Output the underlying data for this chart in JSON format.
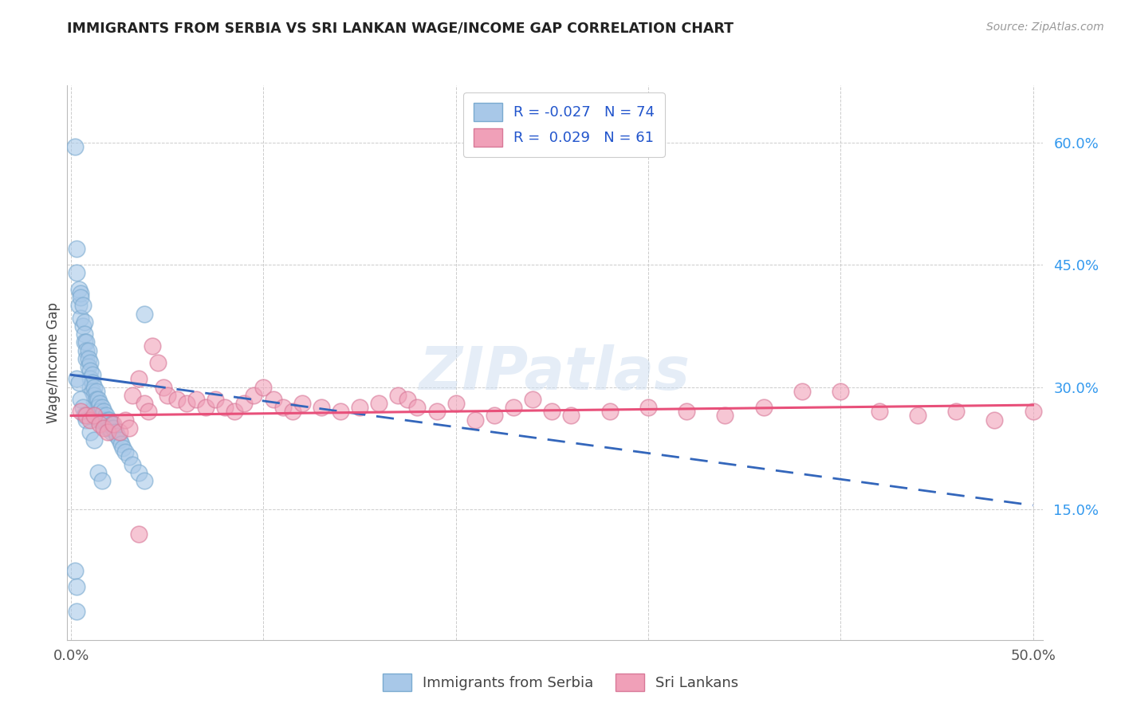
{
  "title": "IMMIGRANTS FROM SERBIA VS SRI LANKAN WAGE/INCOME GAP CORRELATION CHART",
  "source": "Source: ZipAtlas.com",
  "ylabel": "Wage/Income Gap",
  "ytick_labels": [
    "15.0%",
    "30.0%",
    "45.0%",
    "60.0%"
  ],
  "ytick_values": [
    0.15,
    0.3,
    0.45,
    0.6
  ],
  "xlim": [
    -0.002,
    0.505
  ],
  "ylim": [
    -0.01,
    0.67
  ],
  "series_1_label": "Immigrants from Serbia",
  "series_2_label": "Sri Lankans",
  "series_1_color": "#a8c8e8",
  "series_2_color": "#f0a0b8",
  "series_1_edge": "#7aaad0",
  "series_2_edge": "#d87898",
  "trendline_1_color": "#3366bb",
  "trendline_2_color": "#e8507a",
  "watermark": "ZIPatlas",
  "blue_x": [
    0.002,
    0.003,
    0.003,
    0.004,
    0.004,
    0.005,
    0.005,
    0.005,
    0.006,
    0.006,
    0.007,
    0.007,
    0.007,
    0.008,
    0.008,
    0.008,
    0.009,
    0.009,
    0.009,
    0.01,
    0.01,
    0.01,
    0.01,
    0.011,
    0.011,
    0.011,
    0.012,
    0.012,
    0.012,
    0.013,
    0.013,
    0.013,
    0.014,
    0.014,
    0.015,
    0.015,
    0.015,
    0.016,
    0.016,
    0.017,
    0.017,
    0.018,
    0.018,
    0.019,
    0.019,
    0.02,
    0.02,
    0.021,
    0.021,
    0.022,
    0.023,
    0.024,
    0.025,
    0.026,
    0.027,
    0.028,
    0.03,
    0.032,
    0.035,
    0.038,
    0.003,
    0.004,
    0.005,
    0.006,
    0.007,
    0.008,
    0.01,
    0.012,
    0.014,
    0.016,
    0.002,
    0.003,
    0.003,
    0.038
  ],
  "blue_y": [
    0.595,
    0.47,
    0.44,
    0.42,
    0.4,
    0.415,
    0.41,
    0.385,
    0.4,
    0.375,
    0.38,
    0.365,
    0.355,
    0.355,
    0.345,
    0.335,
    0.345,
    0.335,
    0.325,
    0.33,
    0.32,
    0.31,
    0.3,
    0.315,
    0.305,
    0.295,
    0.3,
    0.29,
    0.28,
    0.295,
    0.285,
    0.275,
    0.285,
    0.275,
    0.28,
    0.27,
    0.26,
    0.275,
    0.265,
    0.27,
    0.26,
    0.265,
    0.255,
    0.26,
    0.25,
    0.26,
    0.25,
    0.255,
    0.245,
    0.25,
    0.245,
    0.24,
    0.235,
    0.23,
    0.225,
    0.22,
    0.215,
    0.205,
    0.195,
    0.185,
    0.31,
    0.305,
    0.285,
    0.275,
    0.265,
    0.26,
    0.245,
    0.235,
    0.195,
    0.185,
    0.075,
    0.055,
    0.025,
    0.39
  ],
  "pink_x": [
    0.005,
    0.008,
    0.01,
    0.012,
    0.015,
    0.017,
    0.019,
    0.022,
    0.025,
    0.028,
    0.03,
    0.032,
    0.035,
    0.038,
    0.04,
    0.042,
    0.045,
    0.048,
    0.05,
    0.055,
    0.06,
    0.065,
    0.07,
    0.075,
    0.08,
    0.085,
    0.09,
    0.095,
    0.1,
    0.105,
    0.11,
    0.115,
    0.12,
    0.13,
    0.14,
    0.15,
    0.16,
    0.17,
    0.175,
    0.18,
    0.19,
    0.2,
    0.21,
    0.22,
    0.23,
    0.24,
    0.25,
    0.26,
    0.28,
    0.3,
    0.32,
    0.34,
    0.36,
    0.38,
    0.4,
    0.42,
    0.44,
    0.46,
    0.48,
    0.5,
    0.035
  ],
  "pink_y": [
    0.27,
    0.265,
    0.26,
    0.265,
    0.255,
    0.25,
    0.245,
    0.255,
    0.245,
    0.26,
    0.25,
    0.29,
    0.31,
    0.28,
    0.27,
    0.35,
    0.33,
    0.3,
    0.29,
    0.285,
    0.28,
    0.285,
    0.275,
    0.285,
    0.275,
    0.27,
    0.28,
    0.29,
    0.3,
    0.285,
    0.275,
    0.27,
    0.28,
    0.275,
    0.27,
    0.275,
    0.28,
    0.29,
    0.285,
    0.275,
    0.27,
    0.28,
    0.26,
    0.265,
    0.275,
    0.285,
    0.27,
    0.265,
    0.27,
    0.275,
    0.27,
    0.265,
    0.275,
    0.295,
    0.295,
    0.27,
    0.265,
    0.27,
    0.26,
    0.27,
    0.12
  ],
  "trendline_blue_x0": 0.0,
  "trendline_blue_y0": 0.315,
  "trendline_blue_x1": 0.5,
  "trendline_blue_y1": 0.155,
  "trendline_pink_x0": 0.0,
  "trendline_pink_y0": 0.265,
  "trendline_pink_x1": 0.5,
  "trendline_pink_y1": 0.278
}
